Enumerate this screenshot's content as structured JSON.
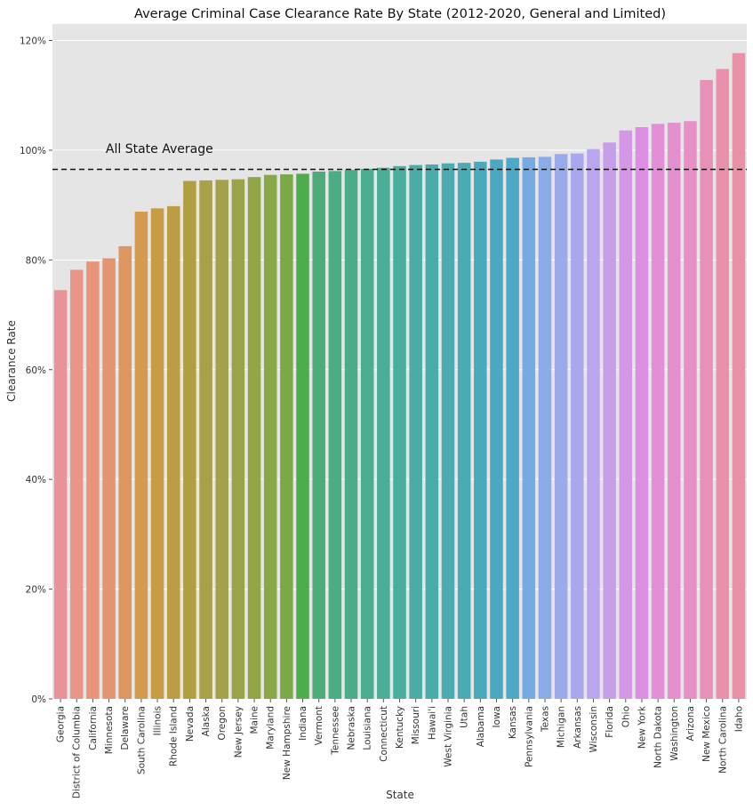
{
  "chart_data": {
    "type": "bar",
    "title": "Average Criminal Case Clearance Rate By State (2012-2020, General and Limited)",
    "xlabel": "State",
    "ylabel": "Clearance Rate",
    "ylim": [
      0,
      1.23
    ],
    "yticks": [
      0,
      0.2,
      0.4,
      0.6,
      0.8,
      1.0,
      1.2
    ],
    "ytick_labels": [
      "0%",
      "20%",
      "40%",
      "60%",
      "80%",
      "100%",
      "120%"
    ],
    "grid": true,
    "background": "#e5e5e5",
    "categories": [
      "Georgia",
      "District of Columbia",
      "California",
      "Minnesota",
      "Delaware",
      "South Carolina",
      "Illinois",
      "Rhode Island",
      "Nevada",
      "Alaska",
      "Oregon",
      "New Jersey",
      "Maine",
      "Maryland",
      "New Hampshire",
      "Indiana",
      "Vermont",
      "Tennessee",
      "Nebraska",
      "Louisiana",
      "Connecticut",
      "Kentucky",
      "Missouri",
      "Hawai'i",
      "West Virginia",
      "Utah",
      "Alabama",
      "Iowa",
      "Kansas",
      "Pennsylvania",
      "Texas",
      "Michigan",
      "Arkansas",
      "Wisconsin",
      "Florida",
      "Ohio",
      "New York",
      "North Dakota",
      "Washington",
      "Arizona",
      "New Mexico",
      "North Carolina",
      "Idaho"
    ],
    "values": [
      0.745,
      0.782,
      0.797,
      0.803,
      0.825,
      0.888,
      0.894,
      0.898,
      0.944,
      0.945,
      0.946,
      0.947,
      0.951,
      0.955,
      0.956,
      0.957,
      0.961,
      0.962,
      0.964,
      0.966,
      0.968,
      0.971,
      0.973,
      0.974,
      0.976,
      0.977,
      0.979,
      0.983,
      0.986,
      0.987,
      0.988,
      0.993,
      0.994,
      1.002,
      1.014,
      1.036,
      1.042,
      1.048,
      1.05,
      1.053,
      1.128,
      1.148,
      1.177
    ],
    "colors": [
      "#e8939a",
      "#e89688",
      "#e8957a",
      "#e3956f",
      "#de9661",
      "#d49a4e",
      "#c89b45",
      "#bd9d43",
      "#b19e43",
      "#aaa04a",
      "#a3a24b",
      "#9ba349",
      "#92a648",
      "#89a747",
      "#7aa945",
      "#4dac4e",
      "#4cad7a",
      "#4bad83",
      "#4aad8a",
      "#4aad92",
      "#4aad98",
      "#4aad9e",
      "#4aaca4",
      "#4aacaa",
      "#4aabb0",
      "#4aabb5",
      "#4aaabb",
      "#4aa9c1",
      "#4ea8c8",
      "#75abe2",
      "#8aace8",
      "#9aabec",
      "#a9a8ee",
      "#b9a6ee",
      "#c69fe9",
      "#d497e8",
      "#dc8ee4",
      "#e28fd8",
      "#e68fcf",
      "#e690c6",
      "#e890b8",
      "#ea90ad",
      "#ea92a5"
    ],
    "reference_line": {
      "value": 0.965,
      "label": "All State Average",
      "style": "dashed"
    }
  }
}
